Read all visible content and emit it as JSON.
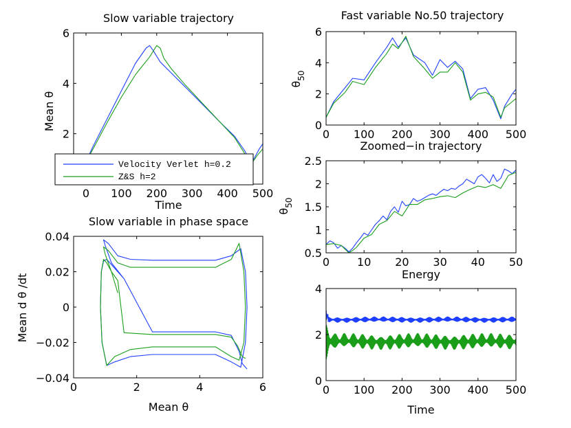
{
  "colors": {
    "blue": "#1f3fff",
    "green": "#1a9e1a"
  },
  "chart_data": [
    {
      "id": "p1",
      "type": "line",
      "title": "Slow variable trajectory",
      "xlabel": "Time",
      "ylabel": "Mean θ",
      "xlim": [
        -35,
        500
      ],
      "ylim": [
        0,
        6
      ],
      "xticks": [
        0,
        100,
        200,
        300,
        400,
        500
      ],
      "yticks": [
        2,
        4,
        6
      ],
      "series": [
        {
          "name": "Velocity Verlet h=0.2",
          "color": "blue",
          "x": [
            0,
            20,
            60,
            100,
            140,
            170,
            180,
            190,
            210,
            260,
            320,
            380,
            420,
            450,
            465,
            475,
            490,
            500
          ],
          "y": [
            0.9,
            1.5,
            2.6,
            3.7,
            4.8,
            5.4,
            5.5,
            5.3,
            4.85,
            4.15,
            3.3,
            2.45,
            1.9,
            1.3,
            0.85,
            1.0,
            1.4,
            1.6
          ]
        },
        {
          "name": "Z&S h=2",
          "color": "green",
          "x": [
            0,
            20,
            60,
            100,
            140,
            180,
            200,
            210,
            220,
            240,
            280,
            330,
            380,
            420,
            445,
            460,
            470,
            485,
            500
          ],
          "y": [
            0.9,
            1.4,
            2.45,
            3.45,
            4.35,
            5.05,
            5.5,
            5.4,
            5.0,
            4.6,
            3.95,
            3.2,
            2.45,
            1.85,
            1.3,
            0.95,
            0.85,
            1.15,
            1.4
          ]
        }
      ],
      "legend": {
        "position": "bottom-left",
        "entries": [
          "Velocity Verlet h=0.2",
          "Z&S h=2"
        ]
      }
    },
    {
      "id": "p2",
      "type": "line",
      "title": "Fast variable No.50 trajectory",
      "xlabel": "",
      "ylabel": "θ_50",
      "xlim": [
        0,
        500
      ],
      "ylim": [
        0,
        6
      ],
      "xticks": [
        0,
        100,
        200,
        300,
        400,
        500
      ],
      "yticks": [
        0,
        2,
        4,
        6
      ],
      "series": [
        {
          "name": "Velocity Verlet h=0.2",
          "color": "blue",
          "x": [
            0,
            20,
            50,
            70,
            100,
            130,
            160,
            175,
            190,
            210,
            230,
            260,
            280,
            300,
            320,
            340,
            360,
            380,
            400,
            420,
            440,
            460,
            470,
            490,
            500
          ],
          "y": [
            0.5,
            1.5,
            2.4,
            3.0,
            2.9,
            4.0,
            5.0,
            5.6,
            5.0,
            5.6,
            4.5,
            4.0,
            3.2,
            4.2,
            3.7,
            4.1,
            3.6,
            1.7,
            2.3,
            2.4,
            1.6,
            0.4,
            1.2,
            2.0,
            2.3
          ]
        },
        {
          "name": "Z&S h=2",
          "color": "green",
          "x": [
            0,
            20,
            50,
            70,
            100,
            130,
            160,
            175,
            190,
            210,
            230,
            260,
            280,
            300,
            320,
            340,
            360,
            380,
            400,
            420,
            440,
            460,
            470,
            490,
            500
          ],
          "y": [
            0.5,
            1.4,
            2.1,
            2.8,
            2.6,
            3.7,
            4.6,
            5.2,
            4.9,
            5.7,
            4.4,
            3.6,
            3.0,
            3.4,
            3.4,
            4.0,
            3.4,
            1.6,
            2.0,
            2.1,
            1.8,
            0.5,
            1.1,
            1.5,
            1.7
          ]
        }
      ]
    },
    {
      "id": "p3",
      "type": "line",
      "title": "Zoomed−in trajectory",
      "xlabel": "",
      "ylabel": "θ_50",
      "xlim": [
        0,
        50
      ],
      "ylim": [
        0.5,
        2.5
      ],
      "xticks": [
        0,
        10,
        20,
        30,
        40,
        50
      ],
      "yticks": [
        0.5,
        1,
        1.5,
        2,
        2.5
      ],
      "series": [
        {
          "name": "Velocity Verlet h=0.2",
          "color": "blue",
          "x": [
            0,
            1,
            2,
            3,
            4,
            5,
            6,
            7,
            8,
            9,
            10,
            11,
            12,
            13,
            14,
            15,
            16,
            17,
            18,
            19,
            20,
            21,
            22,
            23,
            24,
            25,
            26,
            27,
            28,
            29,
            30,
            31,
            32,
            33,
            34,
            35,
            36,
            37,
            38,
            39,
            40,
            41,
            42,
            43,
            44,
            45,
            46,
            47,
            48,
            49,
            50
          ],
          "y": [
            0.68,
            0.76,
            0.72,
            0.6,
            0.66,
            0.6,
            0.52,
            0.6,
            0.72,
            0.82,
            0.93,
            0.88,
            1.0,
            1.12,
            1.2,
            1.3,
            1.22,
            1.4,
            1.5,
            1.38,
            1.62,
            1.52,
            1.55,
            1.68,
            1.62,
            1.65,
            1.7,
            1.75,
            1.78,
            1.75,
            1.82,
            1.88,
            1.85,
            1.9,
            1.88,
            1.95,
            2.0,
            2.1,
            2.05,
            2.0,
            2.15,
            2.2,
            2.12,
            2.02,
            2.2,
            2.05,
            2.12,
            2.32,
            2.28,
            2.22,
            2.3
          ]
        },
        {
          "name": "Z&S h=2",
          "color": "green",
          "x": [
            0,
            2,
            4,
            6,
            7,
            8,
            10,
            12,
            14,
            16,
            18,
            20,
            22,
            24,
            26,
            28,
            30,
            32,
            34,
            36,
            38,
            40,
            42,
            44,
            46,
            48,
            50
          ],
          "y": [
            0.68,
            0.7,
            0.66,
            0.5,
            0.55,
            0.62,
            0.82,
            0.9,
            1.12,
            1.2,
            1.4,
            1.3,
            1.55,
            1.55,
            1.65,
            1.68,
            1.72,
            1.74,
            1.7,
            1.8,
            1.88,
            1.95,
            1.92,
            1.98,
            1.9,
            2.18,
            2.25
          ]
        }
      ]
    },
    {
      "id": "p4",
      "type": "line",
      "title": "Slow variable in phase space",
      "xlabel": "Mean θ",
      "ylabel": "Mean d θ /dt",
      "xlim": [
        0,
        6
      ],
      "ylim": [
        -0.04,
        0.04
      ],
      "xticks": [
        0,
        2,
        4,
        6
      ],
      "yticks": [
        -0.04,
        -0.02,
        0,
        0.02,
        0.04
      ],
      "ytick_labels": [
        "−0.04",
        "−0.02",
        "0",
        "0.02",
        "0.04"
      ],
      "series": [
        {
          "name": "Velocity Verlet h=0.2",
          "color": "blue",
          "x": [
            1.6,
            1.2,
            1.0,
            0.95,
            1.1,
            1.4,
            1.8,
            2.5,
            3.5,
            4.5,
            5.0,
            5.3,
            5.45,
            5.5,
            5.45,
            5.3,
            5.0,
            4.5,
            3.5,
            2.5,
            1.8,
            1.3,
            1.05,
            0.9,
            0.85,
            0.88,
            0.95,
            1.05,
            1.2,
            1.4,
            1.6,
            2.5,
            3.5,
            4.5,
            5.0,
            5.25,
            5.35,
            5.5
          ],
          "y": [
            0.016,
            0.025,
            0.035,
            0.038,
            0.036,
            0.029,
            0.027,
            0.0265,
            0.0265,
            0.0265,
            0.029,
            0.033,
            0.02,
            0.0,
            -0.02,
            -0.034,
            -0.031,
            -0.0268,
            -0.0268,
            -0.0268,
            -0.028,
            -0.031,
            -0.033,
            -0.02,
            0.0,
            0.02,
            0.026,
            0.027,
            0.024,
            0.02,
            0.016,
            -0.014,
            -0.014,
            -0.014,
            -0.016,
            -0.025,
            -0.032,
            -0.035
          ]
        },
        {
          "name": "Z&S h=2",
          "color": "green",
          "x": [
            1.4,
            1.2,
            1.0,
            0.95,
            1.1,
            1.4,
            1.8,
            2.5,
            3.5,
            4.5,
            5.0,
            5.25,
            5.4,
            5.45,
            5.4,
            5.25,
            5.0,
            4.5,
            3.5,
            2.5,
            1.8,
            1.3,
            1.05,
            0.9,
            0.85,
            0.88,
            0.95,
            1.05,
            1.2,
            1.4,
            1.6,
            2.5,
            3.5,
            4.5,
            5.0,
            5.2,
            5.35,
            5.45
          ],
          "y": [
            0.008,
            0.02,
            0.03,
            0.034,
            0.032,
            0.025,
            0.0225,
            0.0225,
            0.0225,
            0.0225,
            0.027,
            0.036,
            0.02,
            0.0,
            -0.02,
            -0.03,
            -0.028,
            -0.0225,
            -0.0225,
            -0.0225,
            -0.024,
            -0.028,
            -0.033,
            -0.02,
            0.0,
            0.02,
            0.027,
            0.025,
            0.02,
            0.015,
            -0.0145,
            -0.0155,
            -0.0155,
            -0.0155,
            -0.017,
            -0.022,
            -0.028,
            -0.029
          ]
        }
      ]
    },
    {
      "id": "p5",
      "type": "line",
      "title": "Energy",
      "xlabel": "Time",
      "ylabel": "",
      "xlim": [
        0,
        500
      ],
      "ylim": [
        0,
        4
      ],
      "xticks": [
        0,
        100,
        200,
        300,
        400,
        500
      ],
      "yticks": [
        0,
        2,
        4
      ],
      "series": [
        {
          "name": "Velocity Verlet h=0.2",
          "color": "blue",
          "mean": 2.65,
          "amplitude": 0.12,
          "initial_peak": 3.0
        },
        {
          "name": "Z&S h=2",
          "color": "green",
          "mean": 1.7,
          "amplitude": 0.35,
          "initial_min": 0.7,
          "initial_max": 2.5
        }
      ]
    }
  ]
}
